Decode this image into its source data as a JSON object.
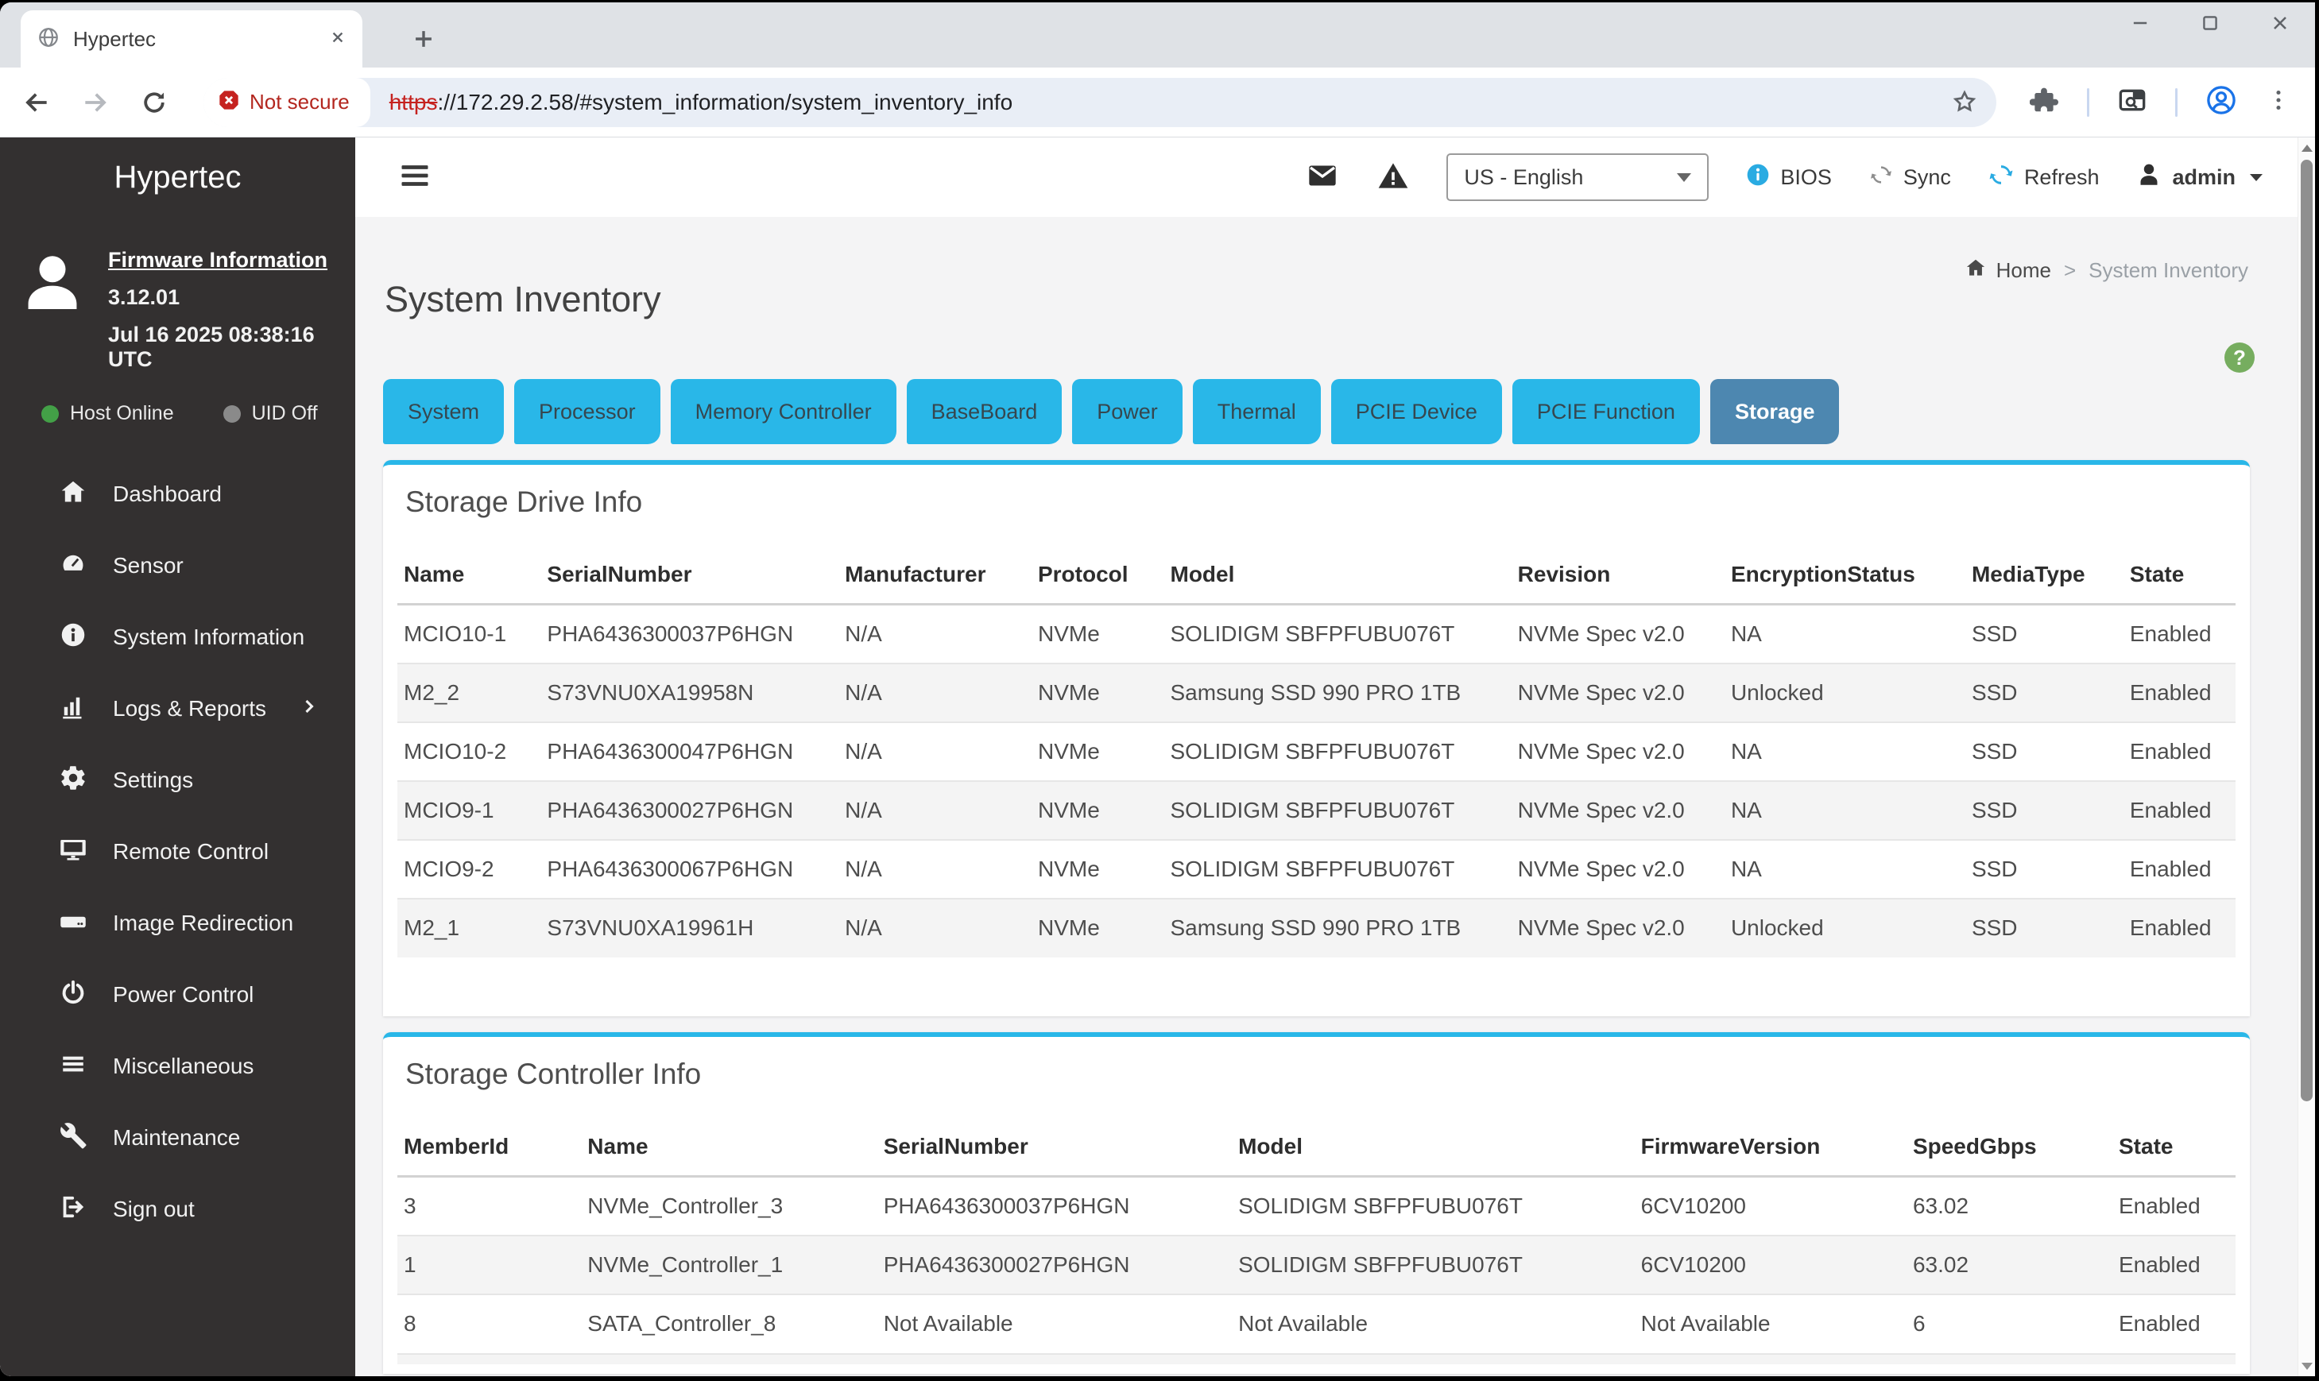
{
  "browser": {
    "tab_title": "Hypertec",
    "not_secure_label": "Not secure",
    "url_scheme": "https",
    "url_rest": "://172.29.2.58/#system_information/system_inventory_info"
  },
  "sidebar": {
    "brand": "Hypertec",
    "firmware_link": "Firmware Information",
    "firmware_version": "3.12.01",
    "firmware_date": "Jul 16 2025 08:38:16 UTC",
    "host_status": "Host Online",
    "uid_status": "UID Off",
    "items": [
      {
        "label": "Dashboard",
        "icon": "home-icon"
      },
      {
        "label": "Sensor",
        "icon": "gauge-icon"
      },
      {
        "label": "System Information",
        "icon": "info-icon"
      },
      {
        "label": "Logs & Reports",
        "icon": "bar-chart-icon",
        "has_submenu": true
      },
      {
        "label": "Settings",
        "icon": "gear-icon"
      },
      {
        "label": "Remote Control",
        "icon": "monitor-icon"
      },
      {
        "label": "Image Redirection",
        "icon": "drive-icon"
      },
      {
        "label": "Power Control",
        "icon": "power-icon"
      },
      {
        "label": "Miscellaneous",
        "icon": "list-icon"
      },
      {
        "label": "Maintenance",
        "icon": "wrench-icon"
      },
      {
        "label": "Sign out",
        "icon": "sign-out-icon"
      }
    ]
  },
  "toolbar": {
    "language_selected": "US - English",
    "bios_label": "BIOS",
    "sync_label": "Sync",
    "refresh_label": "Refresh",
    "user_label": "admin"
  },
  "page": {
    "title": "System Inventory",
    "breadcrumb_home": "Home",
    "breadcrumb_sep": ">",
    "breadcrumb_current": "System Inventory",
    "help_glyph": "?"
  },
  "tabs": [
    {
      "label": "System",
      "active": false
    },
    {
      "label": "Processor",
      "active": false
    },
    {
      "label": "Memory Controller",
      "active": false
    },
    {
      "label": "BaseBoard",
      "active": false
    },
    {
      "label": "Power",
      "active": false
    },
    {
      "label": "Thermal",
      "active": false
    },
    {
      "label": "PCIE Device",
      "active": false
    },
    {
      "label": "PCIE Function",
      "active": false
    },
    {
      "label": "Storage",
      "active": true
    }
  ],
  "drive_info": {
    "title": "Storage Drive Info",
    "columns": [
      "Name",
      "SerialNumber",
      "Manufacturer",
      "Protocol",
      "Model",
      "Revision",
      "EncryptionStatus",
      "MediaType",
      "State"
    ],
    "rows": [
      [
        "MCIO10-1",
        "PHA6436300037P6HGN",
        "N/A",
        "NVMe",
        "SOLIDIGM SBFPFUBU076T",
        "NVMe Spec v2.0",
        "NA",
        "SSD",
        "Enabled"
      ],
      [
        "M2_2",
        "S73VNU0XA19958N",
        "N/A",
        "NVMe",
        "Samsung SSD 990 PRO 1TB",
        "NVMe Spec v2.0",
        "Unlocked",
        "SSD",
        "Enabled"
      ],
      [
        "MCIO10-2",
        "PHA6436300047P6HGN",
        "N/A",
        "NVMe",
        "SOLIDIGM SBFPFUBU076T",
        "NVMe Spec v2.0",
        "NA",
        "SSD",
        "Enabled"
      ],
      [
        "MCIO9-1",
        "PHA6436300027P6HGN",
        "N/A",
        "NVMe",
        "SOLIDIGM SBFPFUBU076T",
        "NVMe Spec v2.0",
        "NA",
        "SSD",
        "Enabled"
      ],
      [
        "MCIO9-2",
        "PHA6436300067P6HGN",
        "N/A",
        "NVMe",
        "SOLIDIGM SBFPFUBU076T",
        "NVMe Spec v2.0",
        "NA",
        "SSD",
        "Enabled"
      ],
      [
        "M2_1",
        "S73VNU0XA19961H",
        "N/A",
        "NVMe",
        "Samsung SSD 990 PRO 1TB",
        "NVMe Spec v2.0",
        "Unlocked",
        "SSD",
        "Enabled"
      ]
    ]
  },
  "controller_info": {
    "title": "Storage Controller Info",
    "columns": [
      "MemberId",
      "Name",
      "SerialNumber",
      "Model",
      "FirmwareVersion",
      "SpeedGbps",
      "State"
    ],
    "rows": [
      [
        "3",
        "NVMe_Controller_3",
        "PHA6436300037P6HGN",
        "SOLIDIGM SBFPFUBU076T",
        "6CV10200",
        "63.02",
        "Enabled"
      ],
      [
        "1",
        "NVMe_Controller_1",
        "PHA6436300027P6HGN",
        "SOLIDIGM SBFPFUBU076T",
        "6CV10200",
        "63.02",
        "Enabled"
      ],
      [
        "8",
        "SATA_Controller_8",
        "Not Available",
        "Not Available",
        "Not Available",
        "6",
        "Enabled"
      ]
    ]
  },
  "colors": {
    "accent_cyan": "#29b7e8",
    "active_tab_blue": "#4d87b0",
    "sidebar_bg": "#333030",
    "help_green": "#76ad5f",
    "refresh_blue": "#2aabe2",
    "danger_red": "#c5221f",
    "host_online_green": "#43a047",
    "uid_off_gray": "#8a8a8a"
  }
}
